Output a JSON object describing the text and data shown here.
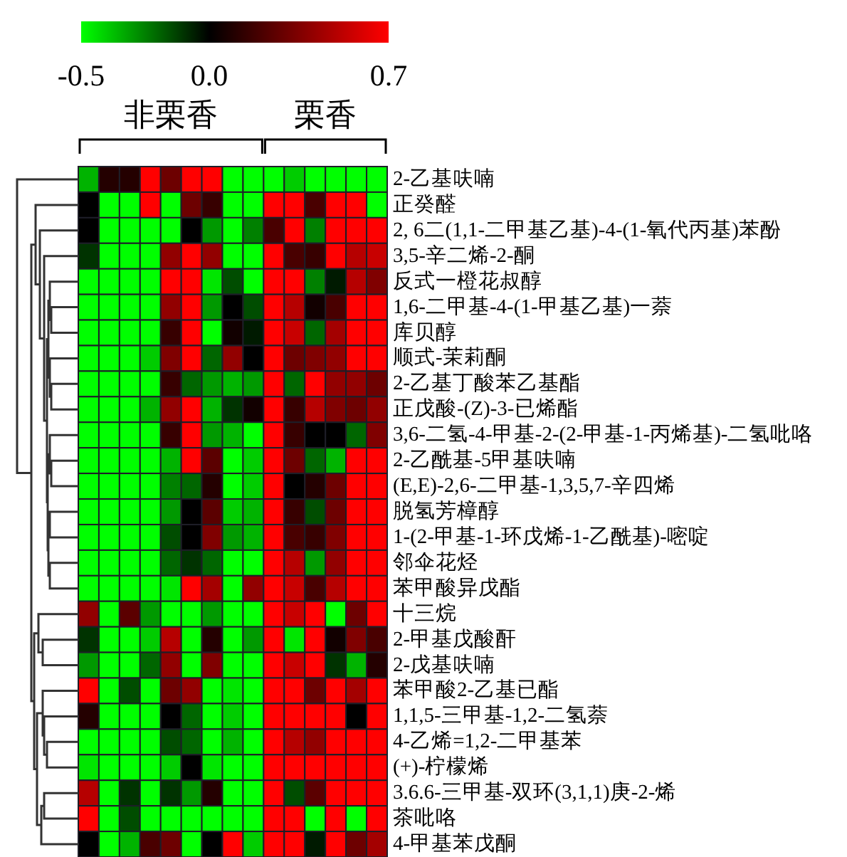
{
  "chart_data": {
    "type": "heatmap",
    "categories": [
      null,
      null,
      null,
      null,
      null,
      null,
      null,
      null,
      null,
      null,
      null,
      null,
      null,
      null,
      null
    ],
    "y_categories": [
      "2-乙基呋喃",
      "正癸醛",
      "2, 6二(1,1-二甲基乙基)-4-(1-氧代丙基)苯酚",
      "3,5-辛二烯-2-酮",
      "反式一橙花叔醇",
      "1,6-二甲基-4-(1-甲基乙基)一萘",
      "库贝醇",
      "顺式-茉莉酮",
      "2-乙基丁酸苯乙基酯",
      "正戊酸-(Z)-3-已烯酯",
      "3,6-二氢-4-甲基-2-(2-甲基-1-丙烯基)-二氢吡咯",
      "2-乙酰基-5甲基呋喃",
      "(E,E)-2,6-二甲基-1,3,5,7-辛四烯",
      "脱氢芳樟醇",
      "1-(2-甲基-1-环戊烯-1-乙酰基)-嘧啶",
      "邻伞花烃",
      "苯甲酸异戊酯",
      "十三烷",
      "2-甲基戊酸酐",
      "2-戊基呋喃",
      "苯甲酸2-乙基已酯",
      "1,1,5-三甲基-1,2-二氢萘",
      "4-乙烯=1,2-二甲基苯",
      "(+)-柠檬烯",
      "3.6.6-三甲基-双环(3,1,1)庚-2-烯",
      "茶吡咯",
      "4-甲基苯戊酮"
    ],
    "cells": [
      [
        -0.35,
        0.1,
        0.1,
        0.7,
        0.3,
        0.7,
        0.7,
        -0.5,
        -0.5,
        -0.5,
        -0.4,
        -0.5,
        -0.5,
        -0.5,
        -0.5
      ],
      [
        0,
        -0.5,
        -0.5,
        0.7,
        -0.5,
        0.3,
        0.15,
        -0.5,
        -0.5,
        0.7,
        0.7,
        0.2,
        0.7,
        0.7,
        -0.5
      ],
      [
        0,
        -0.5,
        -0.5,
        -0.5,
        -0.5,
        0,
        -0.3,
        -0.5,
        -0.25,
        0.2,
        0.7,
        -0.25,
        0.7,
        0.7,
        0.7
      ],
      [
        -0.1,
        -0.5,
        -0.5,
        -0.5,
        0.4,
        0.7,
        0.4,
        -0.5,
        -0.5,
        0.7,
        0.2,
        0.15,
        0.7,
        0.5,
        0.55
      ],
      [
        -0.5,
        -0.5,
        -0.5,
        -0.5,
        0.7,
        0.7,
        -0.45,
        -0.15,
        -0.5,
        0.7,
        0.7,
        -0.25,
        -0.05,
        0.5,
        0.35
      ],
      [
        -0.5,
        -0.5,
        -0.5,
        -0.5,
        0.4,
        0.7,
        -0.3,
        0,
        -0.15,
        0.7,
        0.5,
        0.05,
        0.2,
        0.7,
        0.7
      ],
      [
        -0.5,
        -0.5,
        -0.5,
        -0.5,
        0.15,
        0.7,
        -0.5,
        0.05,
        -0.05,
        0.7,
        0.55,
        -0.2,
        0.45,
        0.7,
        0.7
      ],
      [
        -0.5,
        -0.5,
        -0.5,
        -0.4,
        0.35,
        0.7,
        -0.2,
        0.4,
        0,
        0.7,
        0.3,
        0.35,
        0.4,
        0.7,
        0.7
      ],
      [
        -0.5,
        -0.5,
        -0.5,
        -0.5,
        0.15,
        -0.2,
        -0.3,
        -0.35,
        -0.3,
        0.7,
        -0.2,
        0.7,
        0.4,
        0.4,
        0.3
      ],
      [
        -0.5,
        -0.5,
        -0.5,
        -0.35,
        0.4,
        0.7,
        -0.35,
        -0.1,
        0.05,
        0.7,
        0.15,
        0.5,
        0.35,
        0.3,
        0.4
      ],
      [
        -0.5,
        -0.5,
        -0.5,
        -0.5,
        0.15,
        0.7,
        -0.3,
        -0.35,
        -0.5,
        0.7,
        0.15,
        0,
        0,
        -0.2,
        0.35
      ],
      [
        -0.5,
        -0.5,
        -0.5,
        -0.5,
        -0.35,
        0.7,
        0.25,
        -0.5,
        -0.4,
        0.7,
        0.3,
        -0.2,
        -0.35,
        0.7,
        0.7
      ],
      [
        -0.5,
        -0.5,
        -0.5,
        -0.5,
        -0.25,
        -0.2,
        0.1,
        -0.5,
        -0.4,
        0.7,
        0,
        0.1,
        0.3,
        0.7,
        0.7
      ],
      [
        -0.5,
        -0.5,
        -0.5,
        -0.5,
        -0.3,
        0,
        0.25,
        -0.4,
        -0.35,
        0.7,
        0.15,
        -0.15,
        0.3,
        0.7,
        0.7
      ],
      [
        -0.5,
        -0.5,
        -0.5,
        -0.5,
        -0.15,
        0,
        0.35,
        -0.3,
        -0.35,
        0.7,
        0.2,
        0.15,
        0.35,
        0.7,
        0.7
      ],
      [
        -0.5,
        -0.5,
        -0.5,
        -0.5,
        -0.2,
        -0.1,
        -0.2,
        -0.5,
        -0.5,
        0.7,
        0.5,
        -0.3,
        0.4,
        0.7,
        0.7
      ],
      [
        -0.5,
        -0.5,
        -0.5,
        -0.5,
        -0.45,
        0.7,
        0.45,
        -0.5,
        0.4,
        0.7,
        0.55,
        0.2,
        0.5,
        0.7,
        0.7
      ],
      [
        0.4,
        -0.5,
        0.25,
        -0.3,
        -0.5,
        -0.5,
        -0.3,
        -0.5,
        -0.5,
        0.7,
        0.55,
        0.7,
        -0.5,
        0.3,
        0.7
      ],
      [
        -0.1,
        -0.5,
        -0.5,
        -0.4,
        0.5,
        -0.5,
        0.1,
        -0.5,
        -0.3,
        0.7,
        -0.45,
        0.7,
        0.05,
        0.35,
        0.2
      ],
      [
        -0.3,
        -0.5,
        -0.5,
        -0.2,
        0.4,
        -0.5,
        0.35,
        -0.5,
        -0.5,
        0.7,
        0.55,
        0.7,
        -0.1,
        -0.35,
        0.1
      ],
      [
        0.7,
        -0.5,
        -0.15,
        -0.5,
        0.3,
        0.4,
        -0.5,
        -0.45,
        -0.5,
        0.7,
        0.7,
        0.3,
        0.7,
        0.45,
        0.7
      ],
      [
        0.1,
        -0.5,
        -0.5,
        -0.5,
        0,
        -0.2,
        -0.5,
        -0.4,
        -0.5,
        0.7,
        0.7,
        0.7,
        0.7,
        0,
        0.7
      ],
      [
        -0.5,
        -0.5,
        -0.5,
        -0.5,
        -0.15,
        -0.2,
        -0.5,
        -0.35,
        -0.5,
        0.7,
        0.5,
        0.4,
        0.7,
        0.7,
        0.7
      ],
      [
        -0.45,
        -0.5,
        -0.5,
        -0.5,
        -0.4,
        0,
        -0.45,
        -0.5,
        -0.5,
        0.7,
        0.7,
        0.7,
        0.7,
        0.7,
        0.7
      ],
      [
        0.5,
        -0.5,
        -0.1,
        -0.5,
        -0.1,
        -0.3,
        0.1,
        -0.5,
        -0.5,
        0.7,
        -0.15,
        0.25,
        0.7,
        0.7,
        0.7
      ],
      [
        0.7,
        -0.5,
        -0.15,
        -0.5,
        -0.5,
        -0.5,
        -0.5,
        -0.5,
        -0.5,
        0.7,
        0.7,
        -0.5,
        0.7,
        -0.5,
        0.7
      ],
      [
        0,
        -0.5,
        -0.35,
        0.2,
        0.3,
        -0.5,
        0,
        0.7,
        -0.4,
        0.7,
        0.7,
        -0.05,
        0.7,
        0.3,
        0.45
      ]
    ],
    "clim": [
      -0.5,
      0.7
    ],
    "cticks": [
      -0.5,
      {
        "value": 0,
        "label": "0.0"
      },
      0.7
    ],
    "annotations": [
      "非栗香",
      "栗香"
    ]
  }
}
